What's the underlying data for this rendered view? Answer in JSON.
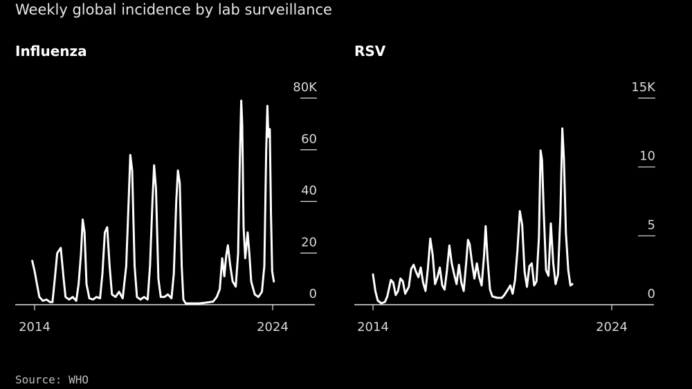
{
  "title": "Weekly global incidence by lab surveillance",
  "source": "Source: WHO",
  "colors": {
    "background": "#000000",
    "line": "#ffffff",
    "axis": "#e6e6e6"
  },
  "chart_data": [
    {
      "type": "line",
      "title": "Influenza",
      "xlabel": "",
      "ylabel": "",
      "xlim": [
        2014,
        2024
      ],
      "ylim": [
        0,
        80000
      ],
      "x_tick_labels": [
        "2014",
        "2024"
      ],
      "y_tick_labels": [
        "0",
        "20",
        "40",
        "60",
        "80K"
      ],
      "grid": false,
      "series": [
        {
          "points": [
            [
              2013.9,
              17000
            ],
            [
              2014.0,
              13000
            ],
            [
              2014.1,
              8000
            ],
            [
              2014.2,
              3000
            ],
            [
              2014.35,
              1500
            ],
            [
              2014.5,
              2000
            ],
            [
              2014.65,
              1000
            ],
            [
              2014.75,
              1000
            ],
            [
              2014.85,
              10000
            ],
            [
              2014.95,
              20000
            ],
            [
              2015.1,
              22000
            ],
            [
              2015.22,
              10000
            ],
            [
              2015.3,
              3000
            ],
            [
              2015.45,
              2000
            ],
            [
              2015.6,
              3000
            ],
            [
              2015.75,
              1500
            ],
            [
              2015.85,
              8000
            ],
            [
              2015.95,
              20000
            ],
            [
              2016.02,
              33000
            ],
            [
              2016.1,
              28000
            ],
            [
              2016.18,
              8000
            ],
            [
              2016.3,
              2500
            ],
            [
              2016.45,
              2000
            ],
            [
              2016.6,
              3000
            ],
            [
              2016.75,
              2500
            ],
            [
              2016.85,
              12000
            ],
            [
              2016.95,
              28000
            ],
            [
              2017.05,
              30000
            ],
            [
              2017.15,
              15000
            ],
            [
              2017.25,
              4000
            ],
            [
              2017.4,
              3000
            ],
            [
              2017.55,
              5000
            ],
            [
              2017.7,
              2500
            ],
            [
              2017.85,
              15000
            ],
            [
              2017.95,
              40000
            ],
            [
              2018.02,
              58000
            ],
            [
              2018.1,
              52000
            ],
            [
              2018.2,
              15000
            ],
            [
              2018.3,
              3000
            ],
            [
              2018.45,
              2000
            ],
            [
              2018.6,
              3000
            ],
            [
              2018.75,
              2000
            ],
            [
              2018.85,
              15000
            ],
            [
              2018.95,
              40000
            ],
            [
              2019.02,
              54000
            ],
            [
              2019.1,
              45000
            ],
            [
              2019.2,
              10000
            ],
            [
              2019.3,
              3000
            ],
            [
              2019.45,
              3000
            ],
            [
              2019.6,
              4000
            ],
            [
              2019.75,
              2500
            ],
            [
              2019.85,
              12000
            ],
            [
              2019.95,
              40000
            ],
            [
              2020.02,
              52000
            ],
            [
              2020.1,
              47000
            ],
            [
              2020.18,
              15000
            ],
            [
              2020.25,
              2000
            ],
            [
              2020.35,
              500
            ],
            [
              2020.6,
              500
            ],
            [
              2020.9,
              500
            ],
            [
              2021.2,
              800
            ],
            [
              2021.5,
              1200
            ],
            [
              2021.65,
              3000
            ],
            [
              2021.78,
              6000
            ],
            [
              2021.88,
              18000
            ],
            [
              2021.97,
              11000
            ],
            [
              2022.05,
              19000
            ],
            [
              2022.12,
              23000
            ],
            [
              2022.22,
              15000
            ],
            [
              2022.32,
              9000
            ],
            [
              2022.45,
              7000
            ],
            [
              2022.55,
              20000
            ],
            [
              2022.62,
              55000
            ],
            [
              2022.68,
              79000
            ],
            [
              2022.72,
              70000
            ],
            [
              2022.78,
              30000
            ],
            [
              2022.85,
              18000
            ],
            [
              2022.95,
              28000
            ],
            [
              2023.02,
              20000
            ],
            [
              2023.1,
              9000
            ],
            [
              2023.25,
              4000
            ],
            [
              2023.4,
              3000
            ],
            [
              2023.55,
              5000
            ],
            [
              2023.65,
              15000
            ],
            [
              2023.73,
              60000
            ],
            [
              2023.78,
              77000
            ],
            [
              2023.82,
              65000
            ],
            [
              2023.88,
              68000
            ],
            [
              2023.93,
              35000
            ],
            [
              2023.98,
              13000
            ],
            [
              2024.05,
              9000
            ]
          ]
        }
      ]
    },
    {
      "type": "line",
      "title": "RSV",
      "xlabel": "",
      "ylabel": "",
      "xlim": [
        2014,
        2024
      ],
      "ylim": [
        0,
        15000
      ],
      "x_tick_labels": [
        "2014",
        "2024"
      ],
      "y_tick_labels": [
        "0",
        "5",
        "10",
        "15K"
      ],
      "grid": false,
      "series": [
        {
          "points": [
            [
              2014.0,
              2200
            ],
            [
              2014.1,
              1000
            ],
            [
              2014.2,
              300
            ],
            [
              2014.35,
              100
            ],
            [
              2014.5,
              200
            ],
            [
              2014.6,
              600
            ],
            [
              2014.75,
              1800
            ],
            [
              2014.85,
              1600
            ],
            [
              2014.95,
              700
            ],
            [
              2015.05,
              1000
            ],
            [
              2015.15,
              1900
            ],
            [
              2015.25,
              1700
            ],
            [
              2015.35,
              800
            ],
            [
              2015.5,
              1300
            ],
            [
              2015.6,
              2600
            ],
            [
              2015.7,
              2900
            ],
            [
              2015.8,
              2400
            ],
            [
              2015.9,
              2000
            ],
            [
              2016.0,
              2700
            ],
            [
              2016.1,
              1600
            ],
            [
              2016.2,
              1000
            ],
            [
              2016.3,
              2600
            ],
            [
              2016.4,
              4800
            ],
            [
              2016.5,
              3600
            ],
            [
              2016.6,
              1500
            ],
            [
              2016.7,
              2000
            ],
            [
              2016.8,
              2700
            ],
            [
              2016.9,
              1400
            ],
            [
              2017.0,
              1100
            ],
            [
              2017.1,
              2500
            ],
            [
              2017.2,
              4300
            ],
            [
              2017.3,
              3000
            ],
            [
              2017.4,
              2200
            ],
            [
              2017.5,
              1500
            ],
            [
              2017.6,
              2900
            ],
            [
              2017.7,
              1600
            ],
            [
              2017.8,
              1000
            ],
            [
              2017.9,
              3000
            ],
            [
              2017.98,
              4700
            ],
            [
              2018.05,
              4400
            ],
            [
              2018.15,
              3000
            ],
            [
              2018.25,
              1900
            ],
            [
              2018.35,
              3000
            ],
            [
              2018.45,
              2000
            ],
            [
              2018.55,
              1400
            ],
            [
              2018.65,
              3500
            ],
            [
              2018.72,
              5700
            ],
            [
              2018.8,
              3300
            ],
            [
              2018.9,
              1100
            ],
            [
              2019.0,
              600
            ],
            [
              2019.2,
              500
            ],
            [
              2019.4,
              500
            ],
            [
              2019.5,
              700
            ],
            [
              2019.65,
              1100
            ],
            [
              2019.75,
              1400
            ],
            [
              2019.85,
              800
            ],
            [
              2019.95,
              1800
            ],
            [
              2020.05,
              3900
            ],
            [
              2020.15,
              6800
            ],
            [
              2020.25,
              5800
            ],
            [
              2020.35,
              2400
            ],
            [
              2020.45,
              1300
            ],
            [
              2020.55,
              2800
            ],
            [
              2020.65,
              3000
            ],
            [
              2020.75,
              1400
            ],
            [
              2020.85,
              1700
            ],
            [
              2020.95,
              4900
            ],
            [
              2021.02,
              11200
            ],
            [
              2021.08,
              10500
            ],
            [
              2021.15,
              6800
            ],
            [
              2021.25,
              2500
            ],
            [
              2021.35,
              2100
            ],
            [
              2021.45,
              5900
            ],
            [
              2021.55,
              3000
            ],
            [
              2021.65,
              1500
            ],
            [
              2021.75,
              2200
            ],
            [
              2021.85,
              6500
            ],
            [
              2021.93,
              12800
            ],
            [
              2022.0,
              10500
            ],
            [
              2022.08,
              5200
            ],
            [
              2022.18,
              2500
            ],
            [
              2022.27,
              1400
            ],
            [
              2022.35,
              1500
            ]
          ]
        }
      ]
    }
  ]
}
